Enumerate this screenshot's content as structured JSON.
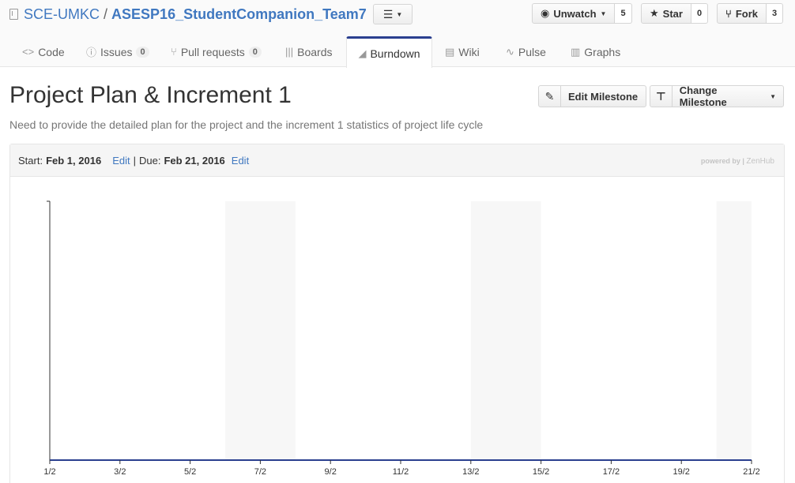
{
  "repo": {
    "owner": "SCE-UMKC",
    "separator": "/",
    "name": "ASESP16_StudentCompanion_Team7"
  },
  "social": {
    "watch_label": "Unwatch",
    "watch_count": "5",
    "star_label": "Star",
    "star_count": "0",
    "fork_label": "Fork",
    "fork_count": "3"
  },
  "tabs": [
    {
      "label": "Code",
      "icon": "code-icon"
    },
    {
      "label": "Issues",
      "icon": "issue-icon",
      "badge": "0"
    },
    {
      "label": "Pull requests",
      "icon": "pull-request-icon",
      "badge": "0"
    },
    {
      "label": "Boards",
      "icon": "boards-icon"
    },
    {
      "label": "Burndown",
      "icon": "burndown-icon",
      "selected": true
    },
    {
      "label": "Wiki",
      "icon": "wiki-icon"
    },
    {
      "label": "Pulse",
      "icon": "pulse-icon"
    },
    {
      "label": "Graphs",
      "icon": "graphs-icon"
    }
  ],
  "milestone": {
    "title": "Project Plan & Increment 1",
    "description": "Need to provide the detailed plan for the project and the increment 1 statistics of project life cycle",
    "edit_button": "Edit Milestone",
    "change_button": "Change Milestone",
    "start_label": "Start:",
    "start_date": "Feb 1, 2016",
    "due_label": "Due:",
    "due_date": "Feb 21, 2016",
    "edit_link": "Edit",
    "pipe": "|",
    "powered_by": "powered by",
    "powered_sep": "|",
    "powered_brand": "ZenHub"
  },
  "chart_data": {
    "type": "line",
    "x_ticks": [
      "1/2",
      "3/2",
      "5/2",
      "7/2",
      "9/2",
      "11/2",
      "13/2",
      "15/2",
      "17/2",
      "19/2",
      "21/2"
    ],
    "x_range_days": [
      1,
      21
    ],
    "weekend_bands": [
      [
        6,
        8
      ],
      [
        13,
        15
      ],
      [
        20,
        21
      ]
    ],
    "series": [
      {
        "values": [
          0,
          0
        ],
        "x": [
          1,
          21
        ]
      }
    ],
    "colors": {
      "line": "#2a3f8f",
      "axis": "#333333",
      "band": "#f7f7f7"
    }
  }
}
